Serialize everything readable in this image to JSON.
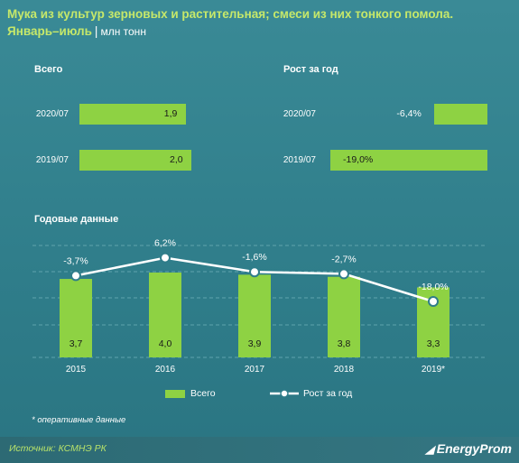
{
  "header": {
    "title": "Мука из культур зерновых и растительная; смеси из них тонкого помола.",
    "period": "Январь–июль",
    "separator": "|",
    "unit": "млн тонн"
  },
  "panels": {
    "total_label": "Всего",
    "growth_label": "Рост за год",
    "annual_label": "Годовые данные"
  },
  "chart_data": [
    {
      "type": "bar",
      "orientation": "horizontal",
      "title": "Всего",
      "categories": [
        "2020/07",
        "2019/07"
      ],
      "values": [
        1.9,
        2.0
      ],
      "value_labels": [
        "1,9",
        "2,0"
      ],
      "xlim": [
        0,
        2.0
      ]
    },
    {
      "type": "bar",
      "orientation": "horizontal",
      "title": "Рост за год",
      "categories": [
        "2020/07",
        "2019/07"
      ],
      "values": [
        -6.4,
        -19.0
      ],
      "value_labels": [
        "-6,4%",
        "-19,0%"
      ],
      "xlim": [
        -19.0,
        0
      ]
    },
    {
      "type": "bar",
      "title": "Годовые данные",
      "categories": [
        "2015",
        "2016",
        "2017",
        "2018",
        "2019*"
      ],
      "series": [
        {
          "name": "Всего",
          "values": [
            3.7,
            4.0,
            3.9,
            3.8,
            3.3
          ],
          "value_labels": [
            "3,7",
            "4,0",
            "3,9",
            "3,8",
            "3,3"
          ],
          "color": "#8ed243"
        },
        {
          "name": "Рост за год",
          "type": "line",
          "values": [
            -3.7,
            6.2,
            -1.6,
            -2.7,
            -18.0
          ],
          "value_labels": [
            "-3,7%",
            "6,2%",
            "-1,6%",
            "-2,7%",
            "-18,0%"
          ],
          "color": "#ffffff"
        }
      ],
      "legend": "bottom",
      "grid": true
    }
  ],
  "note": "* оперативные данные",
  "footer": {
    "source": "Источник: КСМНЭ РК",
    "logo": "EnergyProm"
  },
  "colors": {
    "background": "#2f7d8a",
    "bar": "#8ed243",
    "accent": "#c6e86a"
  }
}
